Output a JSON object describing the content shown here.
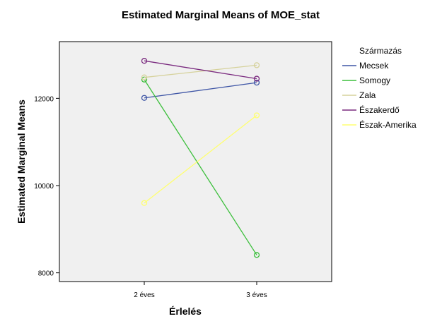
{
  "chart_data": {
    "type": "line",
    "title": "Estimated Marginal Means of MOE_stat",
    "xlabel": "Érlelés",
    "ylabel": "Estimated Marginal Means",
    "categories": [
      "2 éves",
      "3 éves"
    ],
    "ylim": [
      7800,
      13300
    ],
    "yticks": [
      8000,
      10000,
      12000
    ],
    "grid": false,
    "legend": {
      "title": "Származás",
      "position": "right"
    },
    "series": [
      {
        "name": "Mecsek",
        "color": "#3f56a6",
        "values": [
          12010,
          12360
        ]
      },
      {
        "name": "Somogy",
        "color": "#3cbf3c",
        "values": [
          12430,
          8410
        ]
      },
      {
        "name": "Zala",
        "color": "#d6d29c",
        "values": [
          12480,
          12760
        ]
      },
      {
        "name": "Északerdő",
        "color": "#7a2a7f",
        "values": [
          12860,
          12450
        ]
      },
      {
        "name": "Észak-Amerika",
        "color": "#ffff70",
        "values": [
          9600,
          11610
        ]
      }
    ]
  }
}
